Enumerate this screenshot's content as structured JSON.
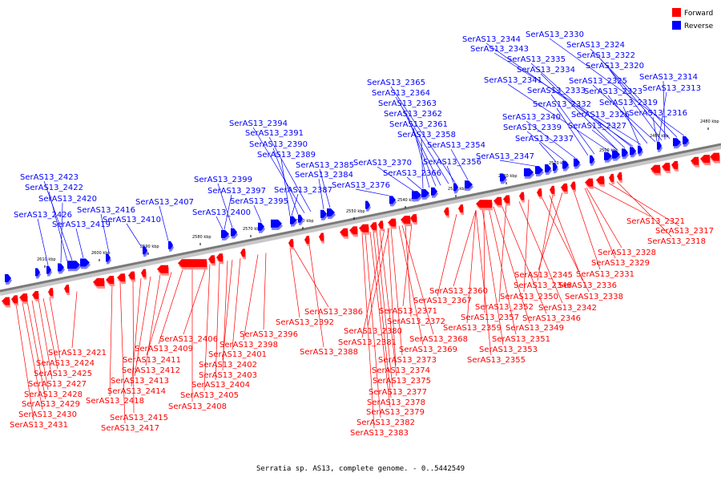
{
  "caption": "Serratia sp. AS13, complete genome. - 0..5442549",
  "legend": [
    {
      "label": "Forward",
      "color": "#ff0000"
    },
    {
      "label": "Reverse",
      "color": "#0000ff"
    }
  ],
  "ticks": [
    "2480 kbp",
    "2490 kbp",
    "2500 kbp",
    "2510 kbp",
    "2520 kbp",
    "2530 kbp",
    "2540 kbp",
    "2550 kbp",
    "2560 kbp",
    "2570 kbp",
    "2580 kbp",
    "2590 kbp",
    "2600 kbp",
    "2610 kbp"
  ],
  "reverse_labels": [
    "SerAS13_2330",
    "SerAS13_2344",
    "SerAS13_2324",
    "SerAS13_2343",
    "SerAS13_2322",
    "SerAS13_2335",
    "SerAS13_2320",
    "SerAS13_2334",
    "SerAS13_2314",
    "SerAS13_2341",
    "SerAS13_2325",
    "SerAS13_2365",
    "SerAS13_2313",
    "SerAS13_2333",
    "SerAS13_2323",
    "SerAS13_2364",
    "SerAS13_2319",
    "SerAS13_2363",
    "SerAS13_2332",
    "SerAS13_2316",
    "SerAS13_2362",
    "SerAS13_2326",
    "SerAS13_2340",
    "SerAS13_2394",
    "SerAS13_2361",
    "SerAS13_2327",
    "SerAS13_2339",
    "SerAS13_2391",
    "SerAS13_2358",
    "SerAS13_2337",
    "SerAS13_2390",
    "SerAS13_2354",
    "SerAS13_2389",
    "SerAS13_2347",
    "SerAS13_2385",
    "SerAS13_2370",
    "SerAS13_2356",
    "SerAS13_2423",
    "SerAS13_2384",
    "SerAS13_2366",
    "SerAS13_2399",
    "SerAS13_2422",
    "SerAS13_2376",
    "SerAS13_2397",
    "SerAS13_2387",
    "SerAS13_2420",
    "SerAS13_2395",
    "SerAS13_2407",
    "SerAS13_2416",
    "SerAS13_2400",
    "SerAS13_2426",
    "SerAS13_2410",
    "SerAS13_2419"
  ],
  "forward_labels": [
    "SerAS13_2321",
    "SerAS13_2317",
    "SerAS13_2318",
    "SerAS13_2328",
    "SerAS13_2329",
    "SerAS13_2331",
    "SerAS13_2345",
    "SerAS13_2348",
    "SerAS13_2336",
    "SerAS13_2360",
    "SerAS13_2338",
    "SerAS13_2367",
    "SerAS13_2350",
    "SerAS13_2342",
    "SerAS13_2386",
    "SerAS13_2371",
    "SerAS13_2352",
    "SerAS13_2346",
    "SerAS13_2357",
    "SerAS13_2392",
    "SerAS13_2372",
    "SerAS13_2359",
    "SerAS13_2349",
    "SerAS13_2396",
    "SerAS13_2380",
    "SerAS13_2368",
    "SerAS13_2351",
    "SerAS13_2406",
    "SerAS13_2398",
    "SerAS13_2381",
    "SerAS13_2388",
    "SerAS13_2369",
    "SerAS13_2353",
    "SerAS13_2421",
    "SerAS13_2409",
    "SerAS13_2401",
    "SerAS13_2373",
    "SerAS13_2355",
    "SerAS13_2424",
    "SerAS13_2411",
    "SerAS13_2402",
    "SerAS13_2374",
    "SerAS13_2425",
    "SerAS13_2412",
    "SerAS13_2403",
    "SerAS13_2375",
    "SerAS13_2427",
    "SerAS13_2413",
    "SerAS13_2404",
    "SerAS13_2377",
    "SerAS13_2428",
    "SerAS13_2414",
    "SerAS13_2405",
    "SerAS13_2378",
    "SerAS13_2418",
    "SerAS13_2408",
    "SerAS13_2429",
    "SerAS13_2379",
    "SerAS13_2430",
    "SerAS13_2415",
    "SerAS13_2382",
    "SerAS13_2431",
    "SerAS13_2417",
    "SerAS13_2383"
  ]
}
